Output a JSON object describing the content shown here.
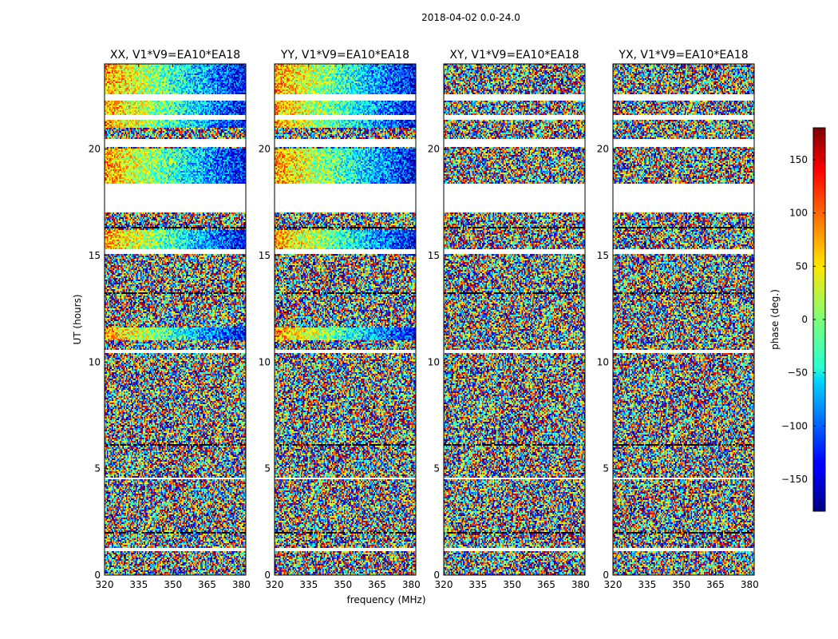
{
  "chart_data": {
    "type": "heatmap",
    "suptitle": "2018-04-02 0.0-24.0",
    "xlabel": "frequency (MHz)",
    "ylabel": "UT (hours)",
    "xlim": [
      320,
      382
    ],
    "ylim": [
      0,
      24
    ],
    "x_ticks": [
      "320",
      "335",
      "350",
      "365",
      "380"
    ],
    "x_tick_values": [
      320,
      335,
      350,
      365,
      380
    ],
    "y_ticks": [
      "0",
      "5",
      "10",
      "15",
      "20"
    ],
    "y_tick_values": [
      0,
      5,
      10,
      15,
      20
    ],
    "colorbar": {
      "label": "phase (deg.)",
      "range": [
        -180,
        180
      ],
      "ticks": [
        "150",
        "100",
        "50",
        "0",
        "−50",
        "−100",
        "−150"
      ],
      "tick_values": [
        150,
        100,
        50,
        0,
        -50,
        -100,
        -150
      ],
      "colormap": "jet"
    },
    "panels": [
      {
        "title": "XX, V1*V9=EA10*EA18",
        "coherent_hours": [
          [
            18.3,
            20.0
          ],
          [
            21.0,
            24.0
          ],
          [
            15.2,
            16.2
          ],
          [
            11.0,
            11.6
          ]
        ]
      },
      {
        "title": "YY, V1*V9=EA10*EA18",
        "coherent_hours": [
          [
            18.3,
            20.0
          ],
          [
            21.0,
            24.0
          ],
          [
            15.2,
            16.2
          ],
          [
            11.0,
            11.6
          ]
        ]
      },
      {
        "title": "XY, V1*V9=EA10*EA18",
        "coherent_hours": []
      },
      {
        "title": "YX, V1*V9=EA10*EA18",
        "coherent_hours": []
      }
    ],
    "blank_hours": [
      [
        17.05,
        18.35
      ],
      [
        20.1,
        20.5
      ],
      [
        15.1,
        15.3
      ],
      [
        22.3,
        22.6
      ],
      [
        21.4,
        21.6
      ],
      [
        10.45,
        10.6
      ],
      [
        4.5,
        4.6
      ],
      [
        3.5,
        3.55
      ],
      [
        1.15,
        1.25
      ]
    ],
    "flagged_hours": [
      [
        17.0,
        17.05
      ],
      [
        16.3,
        16.35
      ],
      [
        13.2,
        13.25
      ],
      [
        12.2,
        12.25
      ],
      [
        9.5,
        9.55
      ],
      [
        8.9,
        8.95
      ],
      [
        7.4,
        7.45
      ],
      [
        6.1,
        6.15
      ],
      [
        5.3,
        5.35
      ],
      [
        1.95,
        2.0
      ],
      [
        1.4,
        1.45
      ]
    ]
  }
}
